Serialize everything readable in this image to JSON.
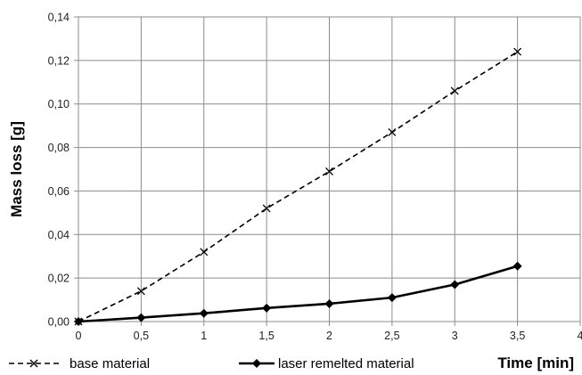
{
  "chart_data": {
    "type": "line",
    "title": "",
    "xlabel": "Time [min]",
    "ylabel": "Mass loss [g]",
    "x": [
      0,
      0.5,
      1,
      1.5,
      2,
      2.5,
      3,
      3.5
    ],
    "xlim": [
      0,
      4
    ],
    "ylim": [
      0,
      0.14
    ],
    "x_ticks": [
      "0",
      "0,5",
      "1",
      "1,5",
      "2",
      "2,5",
      "3",
      "3,5",
      "4"
    ],
    "y_ticks": [
      "0,00",
      "0,02",
      "0,04",
      "0,06",
      "0,08",
      "0,10",
      "0,12",
      "0,14"
    ],
    "grid": true,
    "legend_position": "bottom-left",
    "series": [
      {
        "name": "base material",
        "values": [
          0.0,
          0.014,
          0.032,
          0.052,
          0.069,
          0.087,
          0.106,
          0.124
        ],
        "line_style": "dashed",
        "marker": "x",
        "color": "#000000"
      },
      {
        "name": "laser remelted material",
        "values": [
          0.0,
          0.0018,
          0.0038,
          0.0062,
          0.0082,
          0.011,
          0.017,
          0.0255
        ],
        "line_style": "solid",
        "marker": "diamond",
        "color": "#000000"
      }
    ]
  }
}
